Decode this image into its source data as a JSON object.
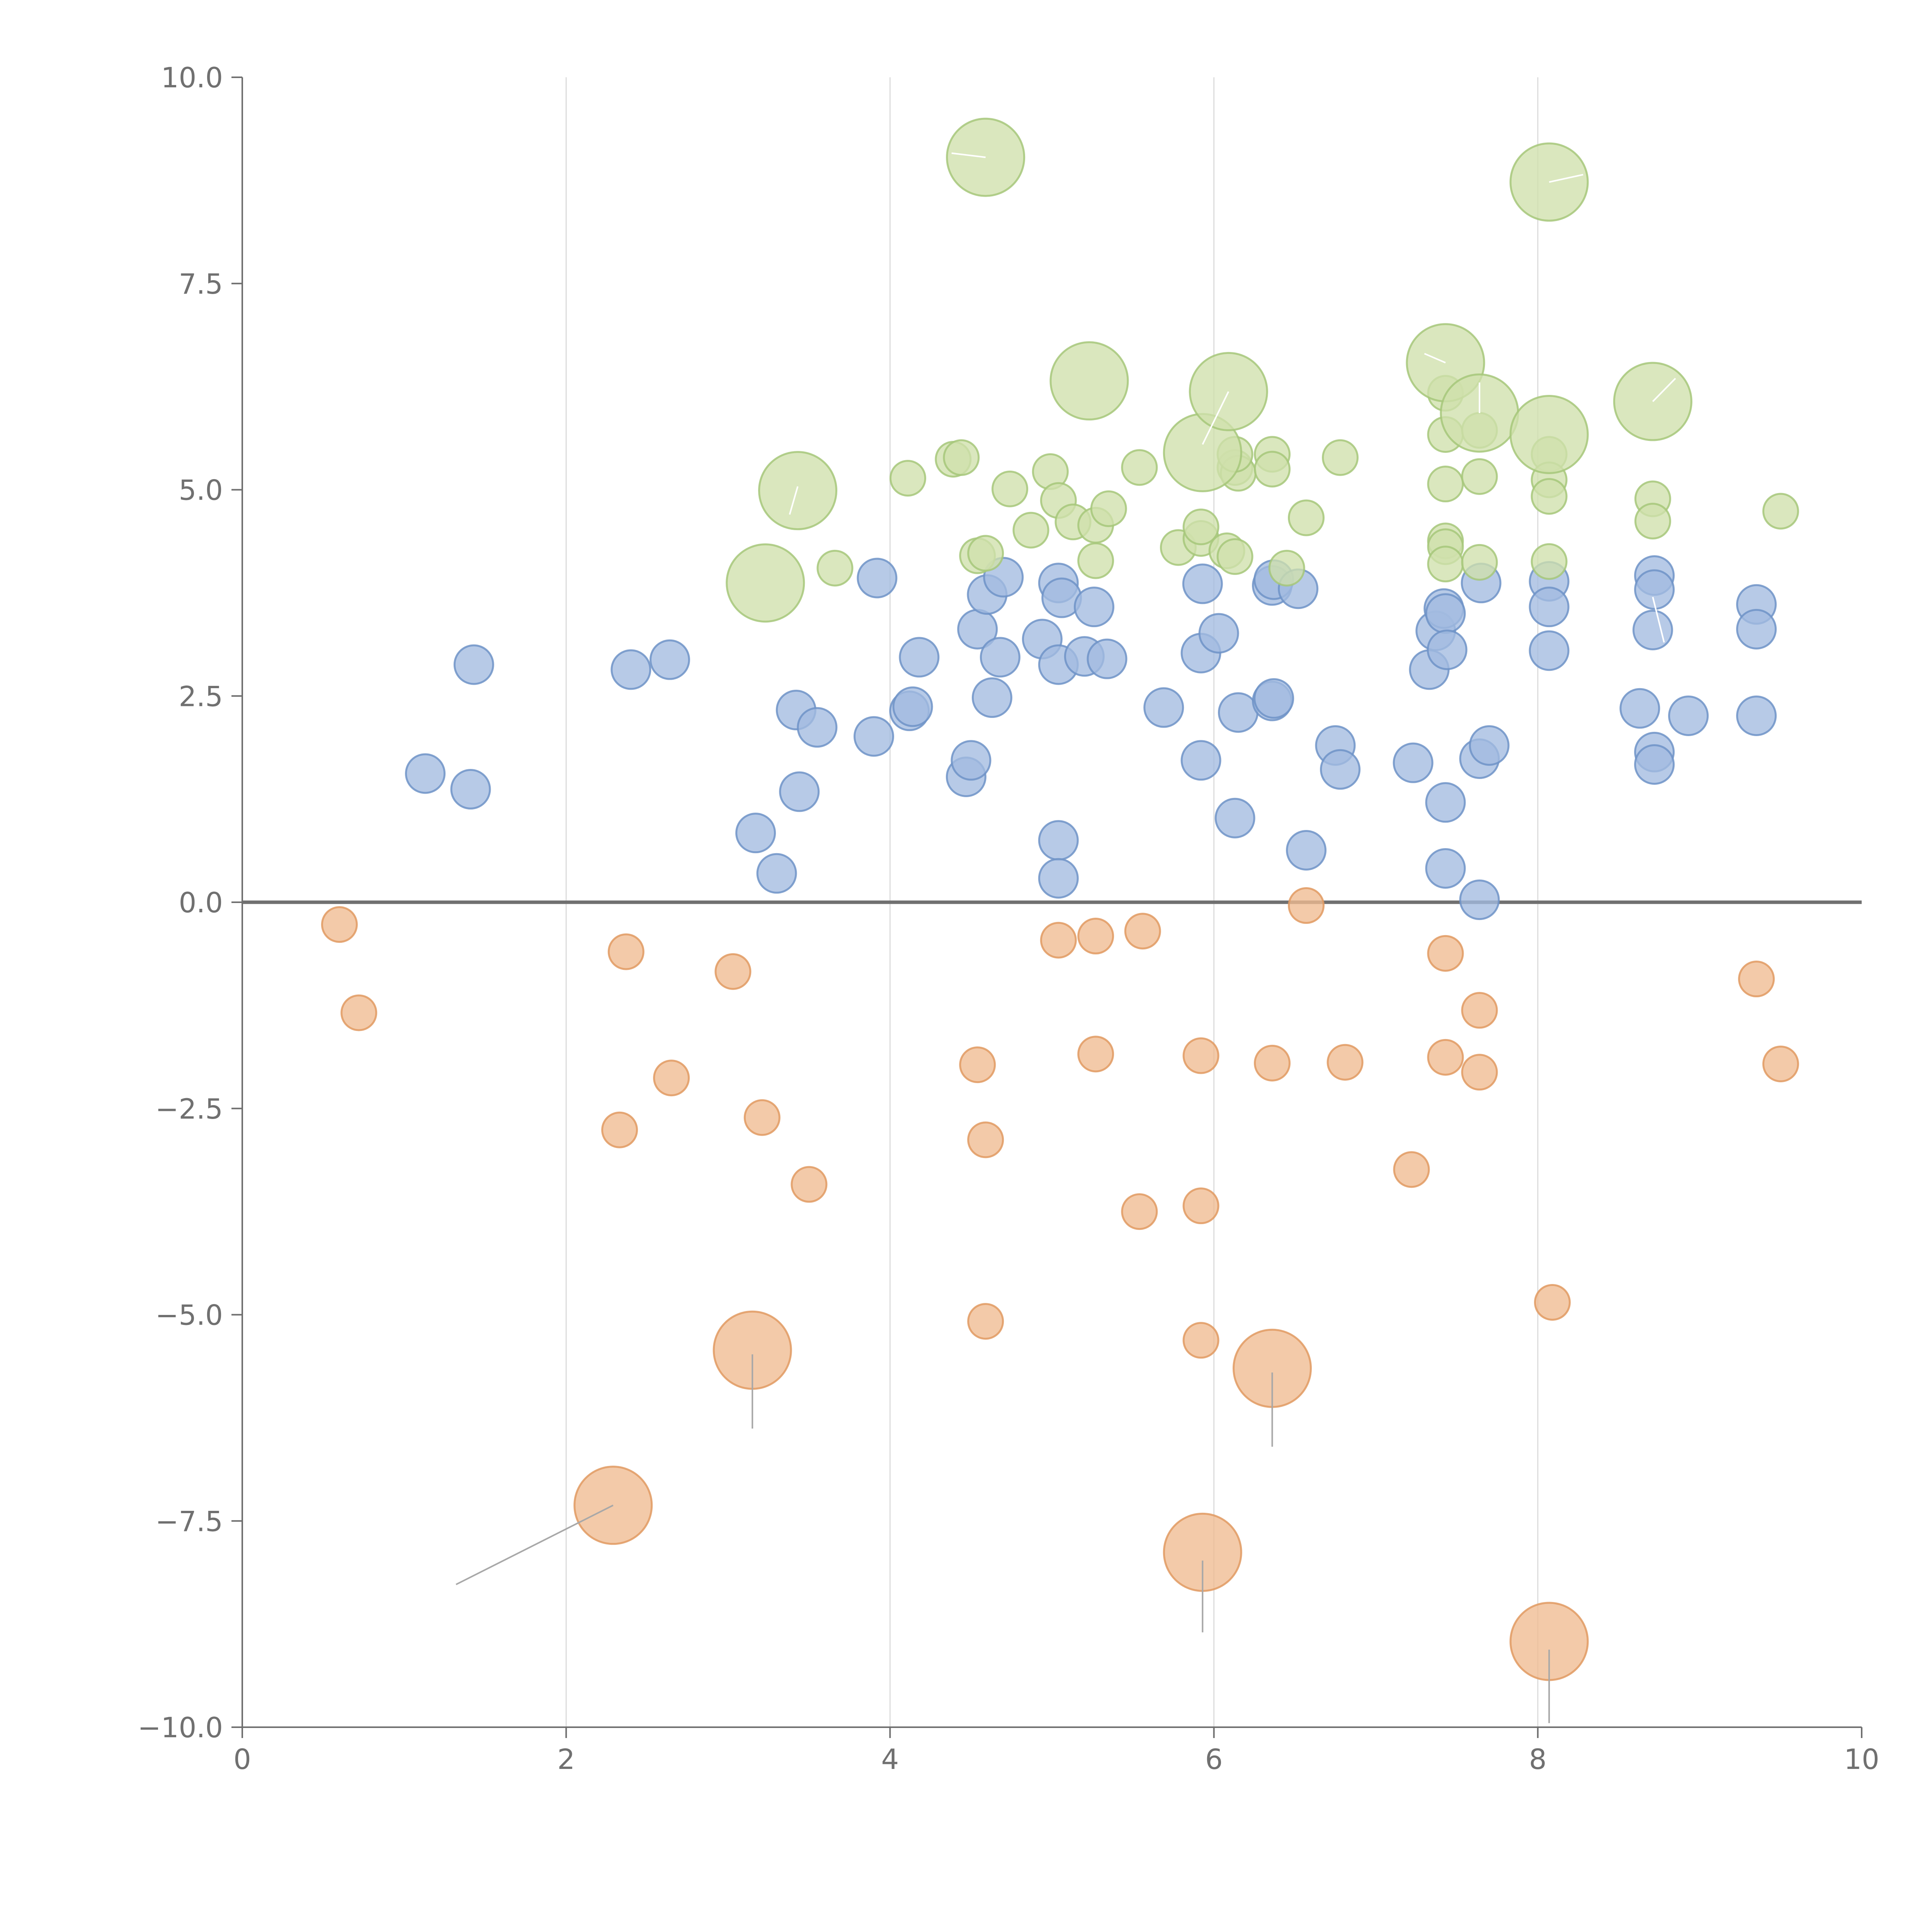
{
  "chart_data": {
    "type": "scatter",
    "title": "",
    "xlabel": "",
    "ylabel": "",
    "xlim": [
      0,
      10
    ],
    "ylim": [
      -10,
      10
    ],
    "x_ticks": [
      0,
      2,
      4,
      6,
      8,
      10
    ],
    "x_tick_labels": [
      "0",
      "2",
      "4",
      "6",
      "8",
      "10"
    ],
    "y_ticks": [
      -10,
      -7.5,
      -5,
      -2.5,
      0,
      2.5,
      5,
      7.5,
      10
    ],
    "y_tick_labels": [
      "−10.0",
      "−7.5",
      "−5.0",
      "−2.5",
      "0.0",
      "2.5",
      "5.0",
      "7.5",
      "10.0"
    ],
    "vertical_grid": true,
    "horizontal_grid": false,
    "zero_line": true,
    "legend": "none",
    "colors": {
      "blue_fill": "#a3bbe0",
      "blue_stroke": "#6e93c7",
      "orange_fill": "#f0bb91",
      "orange_stroke": "#e09a62",
      "green_fill": "#cfe0ac",
      "green_stroke": "#a6c77a",
      "grid": "#dcdcdc",
      "axis": "#6f6f6f",
      "callout_dark": "#a8a8a8",
      "callout_light": "#ffffff"
    },
    "series": [
      {
        "name": "blue",
        "color": "#a3bbe0",
        "points": [
          [
            1.13,
            1.56,
            0.5
          ],
          [
            1.41,
            1.37,
            0.5
          ],
          [
            1.43,
            2.88,
            0.5
          ],
          [
            2.4,
            2.82,
            0.5
          ],
          [
            2.64,
            2.94,
            0.5
          ],
          [
            3.17,
            0.84,
            0.5
          ],
          [
            3.3,
            0.35,
            0.5
          ],
          [
            3.42,
            2.33,
            0.5
          ],
          [
            3.44,
            1.34,
            0.5
          ],
          [
            3.55,
            2.12,
            0.5
          ],
          [
            3.9,
            2.01,
            0.5
          ],
          [
            3.92,
            3.93,
            0.5
          ],
          [
            4.12,
            2.32,
            0.5
          ],
          [
            4.14,
            2.37,
            0.5
          ],
          [
            4.18,
            2.97,
            0.5
          ],
          [
            4.47,
            1.52,
            0.5
          ],
          [
            4.5,
            1.72,
            0.5
          ],
          [
            4.54,
            3.31,
            0.5
          ],
          [
            4.6,
            3.73,
            0.5
          ],
          [
            4.63,
            2.48,
            0.5
          ],
          [
            4.68,
            2.97,
            0.5
          ],
          [
            4.7,
            3.94,
            0.5
          ],
          [
            4.94,
            3.19,
            0.5
          ],
          [
            5.04,
            2.88,
            0.5
          ],
          [
            5.04,
            3.87,
            0.5
          ],
          [
            5.06,
            3.69,
            0.5
          ],
          [
            5.04,
            0.75,
            0.5
          ],
          [
            5.04,
            0.29,
            0.5
          ],
          [
            5.2,
            2.98,
            0.5
          ],
          [
            5.26,
            3.58,
            0.5
          ],
          [
            5.34,
            2.95,
            0.5
          ],
          [
            5.69,
            2.36,
            0.5
          ],
          [
            5.92,
            3.02,
            0.5
          ],
          [
            5.93,
            3.86,
            0.5
          ],
          [
            5.92,
            1.72,
            0.5
          ],
          [
            6.03,
            3.26,
            0.5
          ],
          [
            6.13,
            1.02,
            0.5
          ],
          [
            6.15,
            2.3,
            0.5
          ],
          [
            6.36,
            3.84,
            0.5
          ],
          [
            6.37,
            3.91,
            0.5
          ],
          [
            6.36,
            2.44,
            0.5
          ],
          [
            6.37,
            2.47,
            0.5
          ],
          [
            6.52,
            3.8,
            0.5
          ],
          [
            6.57,
            0.63,
            0.5
          ],
          [
            6.75,
            1.9,
            0.5
          ],
          [
            6.78,
            1.61,
            0.5
          ],
          [
            7.23,
            1.69,
            0.5
          ],
          [
            7.33,
            2.82,
            0.5
          ],
          [
            7.37,
            3.29,
            0.5
          ],
          [
            7.42,
            3.56,
            0.5
          ],
          [
            7.43,
            3.5,
            0.5
          ],
          [
            7.44,
            3.06,
            0.5
          ],
          [
            7.43,
            1.21,
            0.5
          ],
          [
            7.43,
            0.41,
            0.5
          ],
          [
            7.65,
            3.87,
            0.5
          ],
          [
            7.64,
            1.74,
            0.5
          ],
          [
            7.7,
            1.9,
            0.5
          ],
          [
            7.64,
            0.03,
            0.5
          ],
          [
            8.07,
            3.89,
            0.5
          ],
          [
            8.07,
            3.58,
            0.5
          ],
          [
            8.07,
            3.05,
            0.5
          ],
          [
            8.63,
            2.35,
            0.5
          ],
          [
            8.72,
            3.96,
            0.5
          ],
          [
            8.72,
            3.79,
            0.5
          ],
          [
            8.71,
            3.3,
            0.5
          ],
          [
            8.72,
            1.82,
            0.5
          ],
          [
            8.72,
            1.67,
            0.5
          ],
          [
            8.93,
            2.26,
            0.5
          ],
          [
            9.35,
            3.61,
            0.5
          ],
          [
            9.35,
            3.31,
            0.5
          ],
          [
            9.35,
            2.26,
            0.5
          ]
        ]
      },
      {
        "name": "orange",
        "color": "#f0bb91",
        "points": [
          [
            0.6,
            -0.27,
            0.45
          ],
          [
            0.72,
            -1.34,
            0.45
          ],
          [
            2.37,
            -0.6,
            0.45
          ],
          [
            2.33,
            -2.76,
            0.45
          ],
          [
            2.65,
            -2.13,
            0.45
          ],
          [
            3.03,
            -0.84,
            0.45
          ],
          [
            3.21,
            -2.61,
            0.45
          ],
          [
            3.5,
            -3.42,
            0.45
          ],
          [
            4.54,
            -1.97,
            0.45
          ],
          [
            4.59,
            -2.88,
            0.45
          ],
          [
            4.59,
            -5.08,
            0.45
          ],
          [
            5.04,
            -0.46,
            0.45
          ],
          [
            5.27,
            -0.41,
            0.45
          ],
          [
            5.27,
            -1.84,
            0.45
          ],
          [
            5.56,
            -0.35,
            0.45
          ],
          [
            5.54,
            -3.75,
            0.45
          ],
          [
            5.92,
            -1.86,
            0.45
          ],
          [
            5.92,
            -3.68,
            0.45
          ],
          [
            5.92,
            -5.31,
            0.45
          ],
          [
            6.36,
            -1.95,
            0.45
          ],
          [
            6.57,
            -0.04,
            0.45
          ],
          [
            6.81,
            -1.94,
            0.45
          ],
          [
            7.22,
            -3.24,
            0.45
          ],
          [
            7.43,
            -0.62,
            0.45
          ],
          [
            7.43,
            -1.88,
            0.45
          ],
          [
            7.64,
            -1.31,
            0.45
          ],
          [
            7.64,
            -2.06,
            0.45
          ],
          [
            8.09,
            -4.85,
            0.45
          ],
          [
            9.35,
            -0.93,
            0.45
          ],
          [
            9.5,
            -1.96,
            0.45
          ],
          [
            2.29,
            -7.31,
            1.0
          ],
          [
            3.15,
            -5.43,
            1.0
          ],
          [
            5.93,
            -7.88,
            1.0
          ],
          [
            6.36,
            -5.65,
            1.0
          ],
          [
            8.07,
            -8.96,
            1.0
          ]
        ]
      },
      {
        "name": "green",
        "color": "#cfe0ac",
        "points": [
          [
            3.66,
            4.05,
            0.45
          ],
          [
            4.11,
            5.14,
            0.45
          ],
          [
            4.39,
            5.37,
            0.45
          ],
          [
            4.44,
            5.39,
            0.45
          ],
          [
            4.54,
            4.2,
            0.45
          ],
          [
            4.59,
            4.23,
            0.45
          ],
          [
            4.74,
            5.01,
            0.45
          ],
          [
            4.87,
            4.51,
            0.45
          ],
          [
            4.99,
            5.22,
            0.45
          ],
          [
            5.04,
            4.87,
            0.45
          ],
          [
            5.13,
            4.61,
            0.45
          ],
          [
            5.27,
            4.14,
            0.45
          ],
          [
            5.27,
            4.57,
            0.45
          ],
          [
            5.35,
            4.77,
            0.45
          ],
          [
            5.54,
            5.27,
            0.45
          ],
          [
            5.78,
            4.3,
            0.45
          ],
          [
            5.92,
            4.41,
            0.45
          ],
          [
            5.92,
            4.55,
            0.45
          ],
          [
            6.08,
            4.26,
            0.45
          ],
          [
            6.13,
            4.19,
            0.45
          ],
          [
            6.13,
            5.27,
            0.45
          ],
          [
            6.15,
            5.2,
            0.45
          ],
          [
            6.13,
            5.43,
            0.45
          ],
          [
            6.36,
            5.43,
            0.45
          ],
          [
            6.36,
            5.25,
            0.45
          ],
          [
            6.45,
            4.05,
            0.45
          ],
          [
            6.57,
            4.66,
            0.45
          ],
          [
            6.78,
            5.39,
            0.45
          ],
          [
            7.43,
            6.17,
            0.45
          ],
          [
            7.43,
            5.67,
            0.45
          ],
          [
            7.43,
            5.07,
            0.45
          ],
          [
            7.43,
            4.38,
            0.45
          ],
          [
            7.43,
            4.31,
            0.45
          ],
          [
            7.43,
            4.1,
            0.45
          ],
          [
            7.64,
            5.72,
            0.45
          ],
          [
            7.64,
            5.16,
            0.45
          ],
          [
            7.64,
            4.12,
            0.45
          ],
          [
            8.07,
            5.43,
            0.45
          ],
          [
            8.07,
            5.12,
            0.45
          ],
          [
            8.07,
            4.92,
            0.45
          ],
          [
            8.07,
            4.13,
            0.45
          ],
          [
            8.71,
            4.89,
            0.45
          ],
          [
            8.71,
            4.62,
            0.45
          ],
          [
            9.5,
            4.74,
            0.45
          ],
          [
            3.23,
            3.87,
            1.0
          ],
          [
            3.43,
            4.99,
            1.0
          ],
          [
            4.59,
            9.03,
            1.0
          ],
          [
            5.23,
            6.32,
            1.0
          ],
          [
            5.93,
            5.45,
            1.0
          ],
          [
            6.09,
            6.19,
            1.0
          ],
          [
            7.43,
            6.54,
            1.0
          ],
          [
            7.64,
            5.93,
            1.0
          ],
          [
            8.07,
            8.73,
            1.0
          ],
          [
            8.07,
            5.67,
            1.0
          ],
          [
            8.71,
            6.07,
            1.0
          ]
        ]
      }
    ],
    "callout_lines": [
      {
        "series": "orange",
        "from": [
          2.29,
          -7.31
        ],
        "to": [
          1.32,
          -8.27
        ],
        "style": "dark"
      },
      {
        "series": "orange",
        "from": [
          3.15,
          -5.48
        ],
        "to": [
          3.15,
          -6.38
        ],
        "style": "dark"
      },
      {
        "series": "orange",
        "from": [
          5.93,
          -7.98
        ],
        "to": [
          5.93,
          -8.85
        ],
        "style": "dark"
      },
      {
        "series": "orange",
        "from": [
          6.36,
          -5.7
        ],
        "to": [
          6.36,
          -6.6
        ],
        "style": "dark"
      },
      {
        "series": "orange",
        "from": [
          8.07,
          -9.06
        ],
        "to": [
          8.07,
          -9.95
        ],
        "style": "dark"
      },
      {
        "series": "green",
        "from": [
          3.43,
          5.04
        ],
        "to": [
          3.38,
          4.7
        ],
        "style": "light"
      },
      {
        "series": "green",
        "from": [
          4.59,
          9.03
        ],
        "to": [
          4.38,
          9.08
        ],
        "style": "light"
      },
      {
        "series": "green",
        "from": [
          6.09,
          6.19
        ],
        "to": [
          5.93,
          5.55
        ],
        "style": "light"
      },
      {
        "series": "green",
        "from": [
          7.43,
          6.54
        ],
        "to": [
          7.3,
          6.65
        ],
        "style": "light"
      },
      {
        "series": "green",
        "from": [
          7.64,
          5.93
        ],
        "to": [
          7.64,
          6.3
        ],
        "style": "light"
      },
      {
        "series": "green",
        "from": [
          8.07,
          8.73
        ],
        "to": [
          8.28,
          8.82
        ],
        "style": "light"
      },
      {
        "series": "green",
        "from": [
          8.71,
          6.07
        ],
        "to": [
          8.85,
          6.35
        ],
        "style": "light"
      },
      {
        "series": "blue",
        "from": [
          8.71,
          3.7
        ],
        "to": [
          8.78,
          3.15
        ],
        "style": "light"
      }
    ]
  }
}
